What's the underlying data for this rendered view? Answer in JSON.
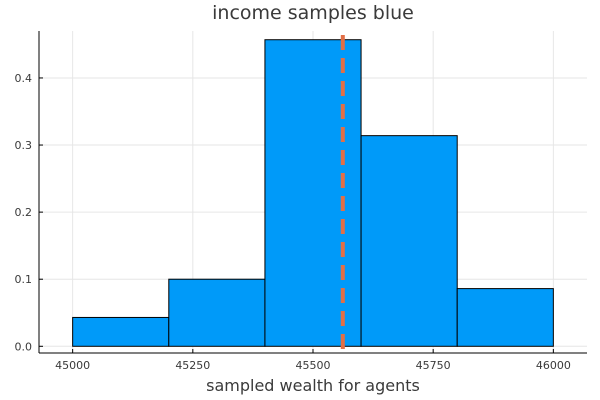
{
  "chart_data": {
    "type": "bar",
    "title": "income samples blue",
    "xlabel": "sampled wealth for agents",
    "ylabel": "",
    "xlim": [
      44930,
      46070
    ],
    "ylim": [
      -0.01,
      0.47
    ],
    "xticks": [
      45000,
      45250,
      45500,
      45750,
      46000
    ],
    "xtick_labels": [
      "45000",
      "45250",
      "45500",
      "45750",
      "46000"
    ],
    "yticks": [
      0.0,
      0.1,
      0.2,
      0.3,
      0.4
    ],
    "ytick_labels": [
      "0.0",
      "0.1",
      "0.2",
      "0.3",
      "0.4"
    ],
    "bins": [
      {
        "x0": 45000,
        "x1": 45200,
        "value": 0.043
      },
      {
        "x0": 45200,
        "x1": 45400,
        "value": 0.1
      },
      {
        "x0": 45400,
        "x1": 45600,
        "value": 0.457
      },
      {
        "x0": 45600,
        "x1": 45800,
        "value": 0.314
      },
      {
        "x0": 45800,
        "x1": 46000,
        "value": 0.086
      }
    ],
    "vline": {
      "x": 45562
    },
    "grid": true,
    "colors": {
      "bar": "#009af9",
      "vline": "#e26f46"
    }
  }
}
